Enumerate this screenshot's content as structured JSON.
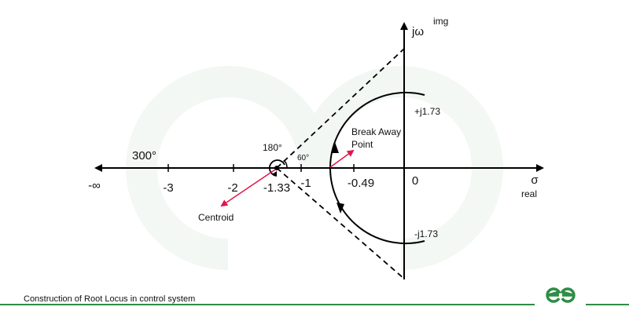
{
  "axes": {
    "sigma": "σ",
    "real": "real",
    "jw": "jω",
    "img": "img"
  },
  "ticks": [
    "-∞",
    "-3",
    "-2",
    "-1.33",
    "-1",
    "-0.49",
    "0"
  ],
  "imag_points": [
    "+j1.73",
    "-j1.73"
  ],
  "angles": [
    "300°",
    "180°",
    "60°"
  ],
  "annotations": {
    "break_away": [
      "Break Away",
      "Point"
    ],
    "centroid": "Centroid"
  },
  "footer": {
    "caption": "Construction of Root Locus in control system"
  }
}
